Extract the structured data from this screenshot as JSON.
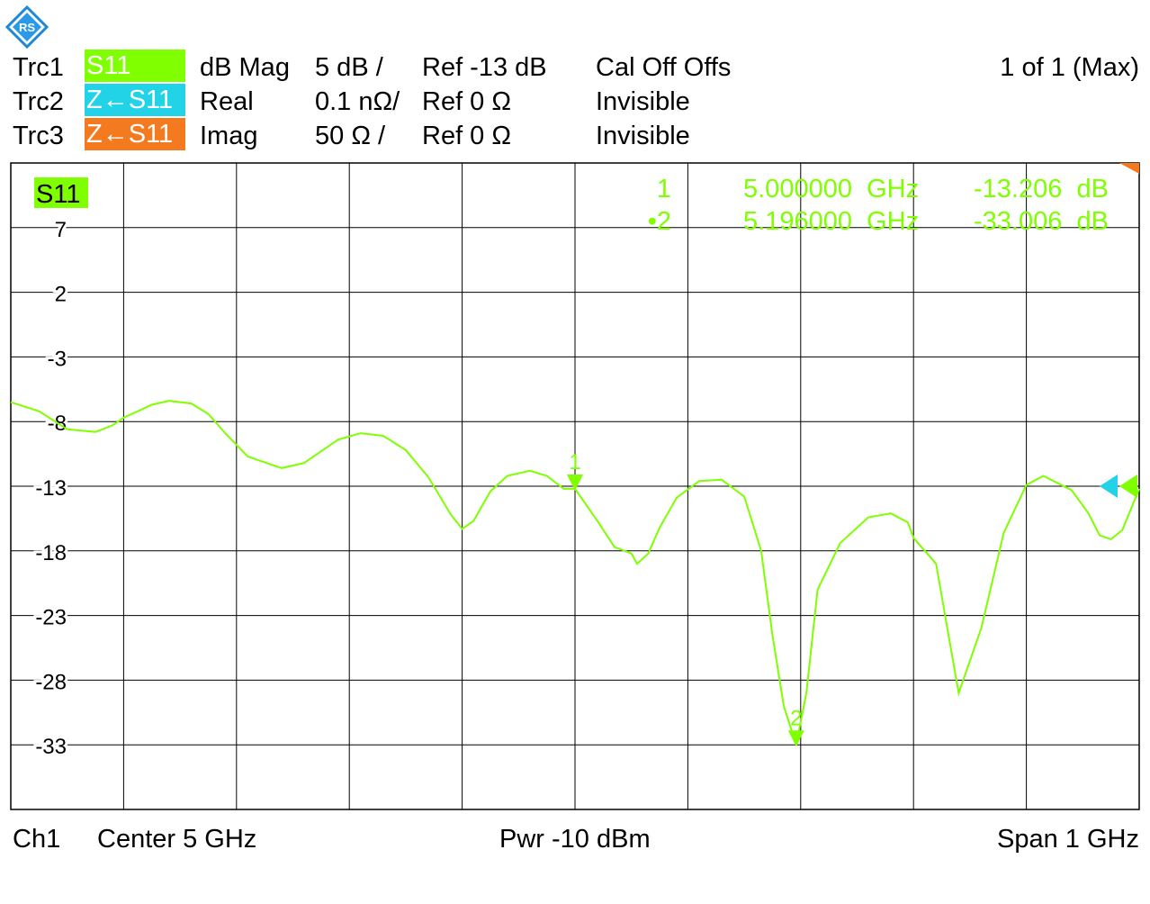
{
  "header": {
    "traces": [
      {
        "name": "Trc1",
        "param": "S11",
        "color": "#7fff00",
        "format": "dB Mag",
        "scale": "5 dB /",
        "ref": "Ref -13 dB",
        "status": "Cal Off Offs"
      },
      {
        "name": "Trc2",
        "param": "Z←S11",
        "color": "#22d3e8",
        "format": "Real",
        "scale": "0.1 nΩ/",
        "ref": "Ref 0 Ω",
        "status": "Invisible"
      },
      {
        "name": "Trc3",
        "param": "Z←S11",
        "color": "#f47a20",
        "format": "Imag",
        "scale": "50 Ω /",
        "ref": "Ref 0 Ω",
        "status": "Invisible"
      }
    ],
    "page_indicator": "1 of 1 (Max)"
  },
  "footer": {
    "channel": "Ch1",
    "center": "Center  5 GHz",
    "power": "Pwr  -10 dBm",
    "span": "Span  1 GHz"
  },
  "chart_data": {
    "type": "line",
    "trace_label": "S11",
    "xlim": [
      4.5,
      5.5
    ],
    "x_unit": "GHz",
    "ylim": [
      -38,
      12
    ],
    "yticks": [
      7,
      2,
      -3,
      -8,
      -13,
      -18,
      -23,
      -28,
      -33
    ],
    "y_unit": "dB",
    "grid": true,
    "series": [
      {
        "name": "S11",
        "color": "#7fff00",
        "x": [
          4.5,
          4.525,
          4.55,
          4.575,
          4.59,
          4.6,
          4.61,
          4.625,
          4.64,
          4.66,
          4.675,
          4.69,
          4.71,
          4.74,
          4.76,
          4.775,
          4.79,
          4.81,
          4.83,
          4.85,
          4.87,
          4.89,
          4.9,
          4.91,
          4.925,
          4.94,
          4.96,
          4.975,
          4.99,
          5.0,
          5.02,
          5.035,
          5.05,
          5.055,
          5.065,
          5.075,
          5.09,
          5.11,
          5.13,
          5.15,
          5.165,
          5.175,
          5.185,
          5.196,
          5.205,
          5.215,
          5.235,
          5.26,
          5.28,
          5.295,
          5.3,
          5.32,
          5.33,
          5.34,
          5.36,
          5.38,
          5.4,
          5.415,
          5.44,
          5.455,
          5.465,
          5.475,
          5.485,
          5.5
        ],
        "y": [
          -6.5,
          -7.2,
          -8.6,
          -8.8,
          -8.3,
          -7.7,
          -7.3,
          -6.7,
          -6.4,
          -6.6,
          -7.4,
          -8.9,
          -10.7,
          -11.6,
          -11.2,
          -10.3,
          -9.4,
          -8.9,
          -9.1,
          -10.2,
          -12.3,
          -15.2,
          -16.3,
          -15.7,
          -13.4,
          -12.2,
          -11.8,
          -12.2,
          -13.2,
          -13.2,
          -15.7,
          -17.7,
          -18.2,
          -19.0,
          -18.2,
          -16.2,
          -13.9,
          -12.6,
          -12.5,
          -13.8,
          -18.0,
          -24.5,
          -30.0,
          -33.0,
          -29.0,
          -21.0,
          -17.4,
          -15.4,
          -15.1,
          -15.8,
          -17.0,
          -19.0,
          -24.0,
          -29.0,
          -24.0,
          -16.6,
          -12.9,
          -12.2,
          -13.3,
          -15.1,
          -16.8,
          -17.1,
          -16.4,
          -13.2
        ]
      }
    ],
    "markers": [
      {
        "label": "1",
        "x": 5.0,
        "y": -13.206,
        "freq": "5.000000  GHz",
        "value": "-13.206  dB"
      },
      {
        "label": "2",
        "x": 5.196,
        "y": -33.006,
        "freq": "5.196000  GHz",
        "value": "-33.006  dB",
        "active": true
      }
    ],
    "marker_table": [
      {
        "label": "1",
        "freq": "5.000000  GHz",
        "value": "-13.206  dB"
      },
      {
        "label": "•2",
        "freq": "5.196000  GHz",
        "value": "-33.006  dB"
      }
    ],
    "colors": {
      "grid": "#000000",
      "trace": "#7fff00",
      "ref_arrow_trc2": "#22d3e8",
      "ref_arrow_trc1": "#7fff00",
      "limit_flag": "#f47a20"
    }
  }
}
